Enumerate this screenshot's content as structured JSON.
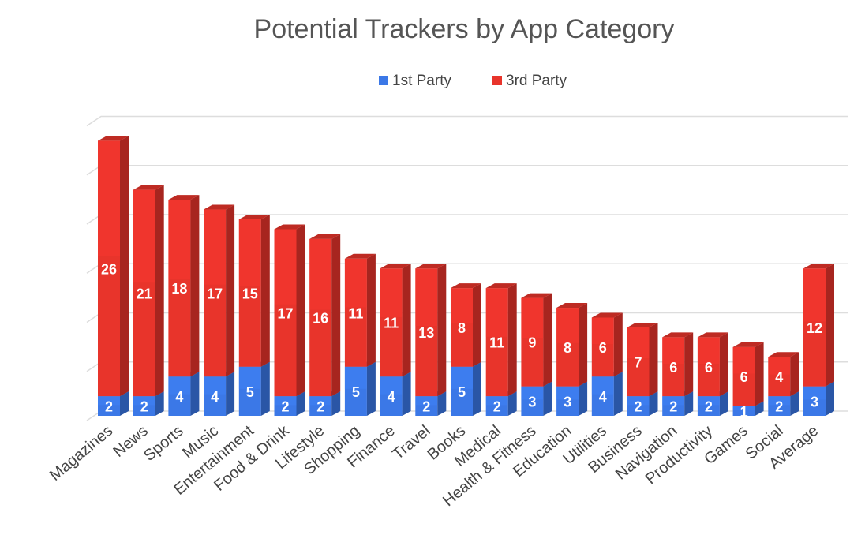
{
  "chart_data": {
    "type": "bar",
    "stacked": true,
    "three_d": true,
    "title": "Potential Trackers by App Category",
    "xlabel": "",
    "ylabel": "",
    "ylim": [
      0,
      30
    ],
    "grid": true,
    "legend_position": "top",
    "categories": [
      "Magazines",
      "News",
      "Sports",
      "Music",
      "Entertainment",
      "Food & Drink",
      "Lifestyle",
      "Shopping",
      "Finance",
      "Travel",
      "Books",
      "Medical",
      "Health & Fitness",
      "Education",
      "Utilities",
      "Business",
      "Navigation",
      "Productivity",
      "Games",
      "Social",
      "Average"
    ],
    "series": [
      {
        "name": "1st Party",
        "color": "#3b78e7",
        "values": [
          2,
          2,
          4,
          4,
          5,
          2,
          2,
          5,
          4,
          2,
          5,
          2,
          3,
          3,
          4,
          2,
          2,
          2,
          1,
          2,
          3
        ]
      },
      {
        "name": "3rd Party",
        "color": "#e8342b",
        "values": [
          26,
          21,
          18,
          17,
          15,
          17,
          16,
          11,
          11,
          13,
          8,
          11,
          9,
          8,
          6,
          7,
          6,
          6,
          6,
          4,
          12
        ]
      }
    ]
  }
}
